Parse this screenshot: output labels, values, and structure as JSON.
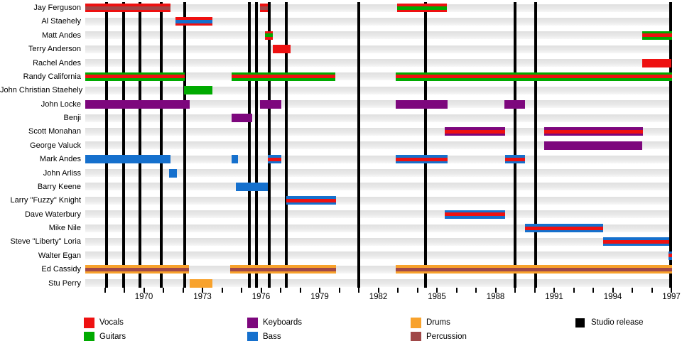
{
  "chart_data": {
    "type": "bar",
    "subtype": "band-membership-timeline-gantt",
    "title": "",
    "x_axis": {
      "min_year": 1967,
      "max_year": 1997,
      "minor_tick_every_years": 1,
      "label_every_years": 3,
      "tick_labels": [
        "1970",
        "1973",
        "1976",
        "1979",
        "1982",
        "1985",
        "1988",
        "1991",
        "1994",
        "1997"
      ],
      "tick_label_years": [
        1970,
        1973,
        1976,
        1979,
        1982,
        1985,
        1988,
        1991,
        1994,
        1997
      ]
    },
    "roles": {
      "vocals": "#ee1111",
      "guitars": "#00aa00",
      "keyboards": "#7d077d",
      "bass": "#1570cd",
      "drums": "#f8a22c",
      "percussion": "#a04848",
      "studio_release": "#000000"
    },
    "members": [
      {
        "name": "Jay Ferguson",
        "bars": [
          {
            "from": 1967.0,
            "to": 1971.35,
            "role": "vocals",
            "stripe": "percussion"
          },
          {
            "from": 1975.95,
            "to": 1976.35,
            "role": "vocals",
            "stripe": "percussion"
          },
          {
            "from": 1982.95,
            "to": 1985.5,
            "role": "vocals",
            "stripe": "guitars"
          }
        ]
      },
      {
        "name": "Al Staehely",
        "bars": [
          {
            "from": 1971.6,
            "to": 1973.5,
            "role": "vocals",
            "stripe": "bass"
          }
        ]
      },
      {
        "name": "Matt Andes",
        "bars": [
          {
            "from": 1976.2,
            "to": 1976.6,
            "role": "vocals",
            "stripe": "guitars"
          },
          {
            "from": 1995.5,
            "to": 1997.05,
            "role": "guitars",
            "stripe": "vocals"
          }
        ]
      },
      {
        "name": "Terry Anderson",
        "bars": [
          {
            "from": 1976.6,
            "to": 1977.5,
            "role": "vocals",
            "stripe": null
          }
        ]
      },
      {
        "name": "Rachel Andes",
        "bars": [
          {
            "from": 1995.5,
            "to": 1997.0,
            "role": "vocals",
            "stripe": null
          }
        ]
      },
      {
        "name": "Randy California",
        "bars": [
          {
            "from": 1967.0,
            "to": 1972.1,
            "role": "guitars",
            "stripe": "vocals"
          },
          {
            "from": 1974.5,
            "to": 1979.8,
            "role": "guitars",
            "stripe": "vocals"
          },
          {
            "from": 1982.9,
            "to": 1997.05,
            "role": "guitars",
            "stripe": "vocals"
          }
        ]
      },
      {
        "name": "John Christian Staehely",
        "bars": [
          {
            "from": 1972.05,
            "to": 1973.5,
            "role": "guitars",
            "stripe": null
          }
        ]
      },
      {
        "name": "John Locke",
        "bars": [
          {
            "from": 1967.0,
            "to": 1972.35,
            "role": "keyboards",
            "stripe": null
          },
          {
            "from": 1975.95,
            "to": 1977.05,
            "role": "keyboards",
            "stripe": null
          },
          {
            "from": 1982.9,
            "to": 1985.55,
            "role": "keyboards",
            "stripe": null
          },
          {
            "from": 1988.45,
            "to": 1989.5,
            "role": "keyboards",
            "stripe": null
          }
        ]
      },
      {
        "name": "Benji",
        "bars": [
          {
            "from": 1974.5,
            "to": 1975.55,
            "role": "keyboards",
            "stripe": null
          }
        ]
      },
      {
        "name": "Scott Monahan",
        "bars": [
          {
            "from": 1985.4,
            "to": 1988.5,
            "role": "keyboards",
            "stripe": "vocals"
          },
          {
            "from": 1990.5,
            "to": 1995.55,
            "role": "keyboards",
            "stripe": "vocals"
          }
        ]
      },
      {
        "name": "George Valuck",
        "bars": [
          {
            "from": 1990.5,
            "to": 1995.5,
            "role": "keyboards",
            "stripe": null
          }
        ]
      },
      {
        "name": "Mark Andes",
        "bars": [
          {
            "from": 1967.0,
            "to": 1971.35,
            "role": "bass",
            "stripe": null
          },
          {
            "from": 1974.5,
            "to": 1974.8,
            "role": "bass",
            "stripe": null
          },
          {
            "from": 1976.35,
            "to": 1977.05,
            "role": "bass",
            "stripe": "vocals"
          },
          {
            "from": 1982.9,
            "to": 1985.55,
            "role": "bass",
            "stripe": "vocals"
          },
          {
            "from": 1988.5,
            "to": 1989.5,
            "role": "bass",
            "stripe": "vocals"
          }
        ]
      },
      {
        "name": "John Arliss",
        "bars": [
          {
            "from": 1971.3,
            "to": 1971.7,
            "role": "bass",
            "stripe": null
          }
        ]
      },
      {
        "name": "Barry Keene",
        "bars": [
          {
            "from": 1974.7,
            "to": 1976.35,
            "role": "bass",
            "stripe": null
          }
        ]
      },
      {
        "name": "Larry \"Fuzzy\" Knight",
        "bars": [
          {
            "from": 1977.3,
            "to": 1979.85,
            "role": "bass",
            "stripe": "vocals"
          }
        ]
      },
      {
        "name": "Dave Waterbury",
        "bars": [
          {
            "from": 1985.4,
            "to": 1988.5,
            "role": "bass",
            "stripe": "vocals"
          }
        ]
      },
      {
        "name": "Mike Nile",
        "bars": [
          {
            "from": 1989.5,
            "to": 1993.5,
            "role": "bass",
            "stripe": "vocals"
          }
        ]
      },
      {
        "name": "Steve \"Liberty\" Loria",
        "bars": [
          {
            "from": 1993.5,
            "to": 1996.9,
            "role": "bass",
            "stripe": "vocals"
          }
        ]
      },
      {
        "name": "Walter Egan",
        "bars": [
          {
            "from": 1996.85,
            "to": 1997.05,
            "role": "bass",
            "stripe": "vocals"
          }
        ]
      },
      {
        "name": "Ed Cassidy",
        "bars": [
          {
            "from": 1967.0,
            "to": 1972.3,
            "role": "drums",
            "stripe": "percussion"
          },
          {
            "from": 1974.4,
            "to": 1979.85,
            "role": "drums",
            "stripe": "percussion"
          },
          {
            "from": 1982.9,
            "to": 1997.05,
            "role": "drums",
            "stripe": "percussion"
          }
        ]
      },
      {
        "name": "Stu Perry",
        "bars": [
          {
            "from": 1972.35,
            "to": 1973.5,
            "role": "drums",
            "stripe": null
          }
        ]
      }
    ],
    "studio_releases_years": [
      1968.1,
      1968.95,
      1969.8,
      1970.9,
      1972.1,
      1975.4,
      1975.75,
      1976.4,
      1977.3,
      1981.0,
      1984.4,
      1989.0,
      1990.05,
      1996.95
    ],
    "legend_position": "bottom"
  },
  "legend": {
    "items": [
      {
        "key": "vocals",
        "label": "Vocals",
        "col": 0,
        "row": 0
      },
      {
        "key": "guitars",
        "label": "Guitars",
        "col": 0,
        "row": 1
      },
      {
        "key": "keyboards",
        "label": "Keyboards",
        "col": 1,
        "row": 0
      },
      {
        "key": "bass",
        "label": "Bass",
        "col": 1,
        "row": 1
      },
      {
        "key": "drums",
        "label": "Drums",
        "col": 2,
        "row": 0
      },
      {
        "key": "percussion",
        "label": "Percussion",
        "col": 2,
        "row": 1
      },
      {
        "key": "studio_release",
        "label": "Studio release",
        "col": 3,
        "row": 0
      }
    ]
  }
}
